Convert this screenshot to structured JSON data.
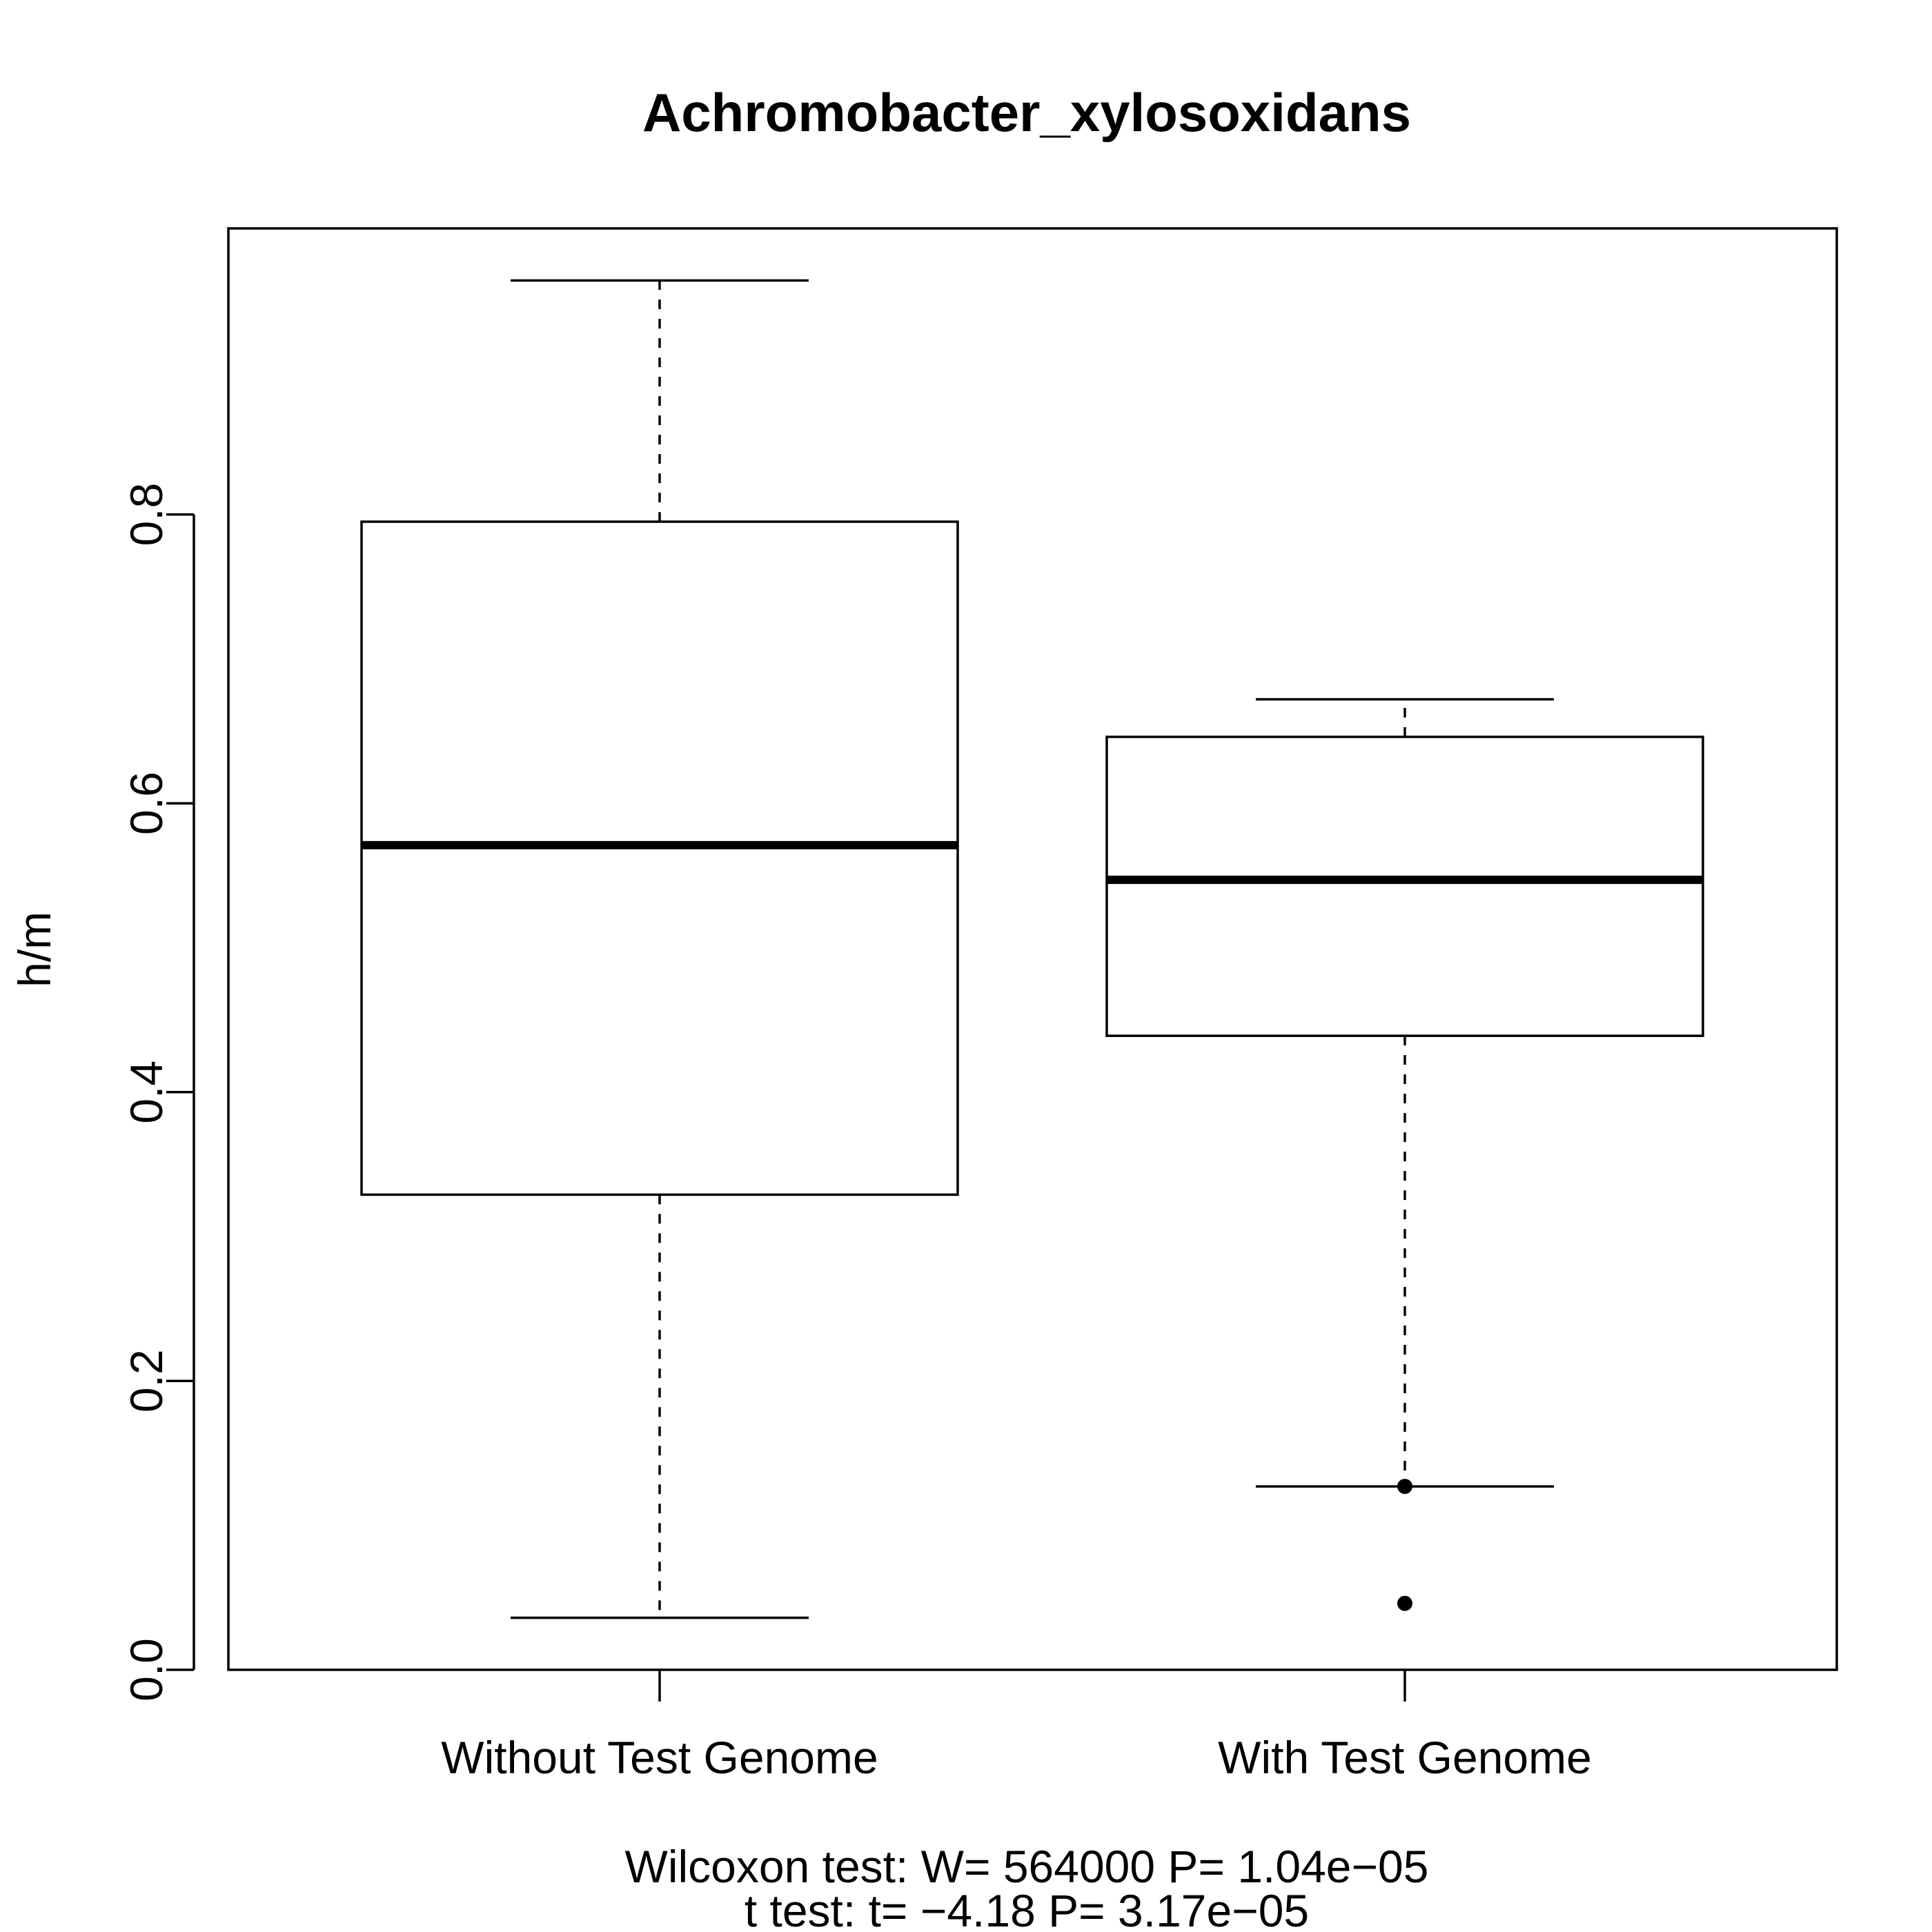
{
  "chart_data": {
    "type": "box",
    "title": "Achromobacter_xylosoxidans",
    "xlabel": "",
    "ylabel": "h/m",
    "subtitle_lines": [
      "Wilcoxon test: W= 564000 P= 1.04e−05",
      "t test: t= −4.18 P= 3.17e−05"
    ],
    "categories": [
      "Without Test Genome",
      "With Test Genome"
    ],
    "ylim": [
      0.0,
      1.0
    ],
    "yticks": [
      0.0,
      0.2,
      0.4,
      0.6,
      0.8
    ],
    "ytick_labels": [
      "0.0",
      "0.2",
      "0.4",
      "0.6",
      "0.8"
    ],
    "grid": false,
    "boxes": [
      {
        "category": "Without Test Genome",
        "whisker_low": 0.036,
        "q1": 0.329,
        "median": 0.571,
        "q3": 0.795,
        "whisker_high": 0.962,
        "outliers": []
      },
      {
        "category": "With Test Genome",
        "whisker_low": 0.127,
        "q1": 0.439,
        "median": 0.547,
        "q3": 0.646,
        "whisker_high": 0.672,
        "outliers": [
          0.127,
          0.046
        ]
      }
    ]
  }
}
